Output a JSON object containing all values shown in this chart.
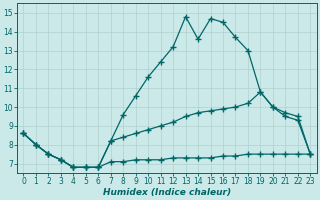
{
  "xlabel": "Humidex (Indice chaleur)",
  "background_color": "#cce9e9",
  "grid_color": "#b0d0d0",
  "line_color": "#006666",
  "xlim": [
    -0.5,
    23.5
  ],
  "ylim": [
    6.5,
    15.5
  ],
  "yticks": [
    7,
    8,
    9,
    10,
    11,
    12,
    13,
    14,
    15
  ],
  "xticks": [
    0,
    1,
    2,
    3,
    4,
    5,
    6,
    7,
    8,
    9,
    10,
    11,
    12,
    13,
    14,
    15,
    16,
    17,
    18,
    19,
    20,
    21,
    22,
    23
  ],
  "line_peak_x": [
    0,
    1,
    2,
    3,
    4,
    5,
    6,
    7,
    8,
    9,
    10,
    11,
    12,
    13,
    14,
    15,
    16,
    17,
    18,
    19,
    20,
    21,
    22,
    23
  ],
  "line_peak_y": [
    8.6,
    8.0,
    7.5,
    7.2,
    6.8,
    6.8,
    6.8,
    8.2,
    9.6,
    10.6,
    11.6,
    12.4,
    13.2,
    14.8,
    13.6,
    14.7,
    14.5,
    13.7,
    13.0,
    10.8,
    10.0,
    9.5,
    9.3,
    7.5
  ],
  "line_mid_x": [
    0,
    1,
    2,
    3,
    4,
    5,
    6,
    7,
    8,
    9,
    10,
    11,
    12,
    13,
    14,
    15,
    16,
    17,
    18,
    19,
    20,
    21,
    22,
    23
  ],
  "line_mid_y": [
    8.6,
    8.0,
    7.5,
    7.2,
    6.8,
    6.8,
    6.8,
    8.2,
    8.4,
    8.6,
    8.8,
    9.0,
    9.2,
    9.5,
    9.7,
    9.8,
    9.9,
    10.0,
    10.2,
    10.8,
    10.0,
    9.7,
    9.5,
    7.5
  ],
  "line_low_x": [
    0,
    1,
    2,
    3,
    4,
    5,
    6,
    7,
    8,
    9,
    10,
    11,
    12,
    13,
    14,
    15,
    16,
    17,
    18,
    19,
    20,
    21,
    22,
    23
  ],
  "line_low_y": [
    8.6,
    8.0,
    7.5,
    7.2,
    6.8,
    6.8,
    6.8,
    7.1,
    7.1,
    7.2,
    7.2,
    7.2,
    7.3,
    7.3,
    7.3,
    7.3,
    7.4,
    7.4,
    7.5,
    7.5,
    7.5,
    7.5,
    7.5,
    7.5
  ],
  "marker": "+",
  "markersize": 4.0,
  "linewidth": 0.9
}
